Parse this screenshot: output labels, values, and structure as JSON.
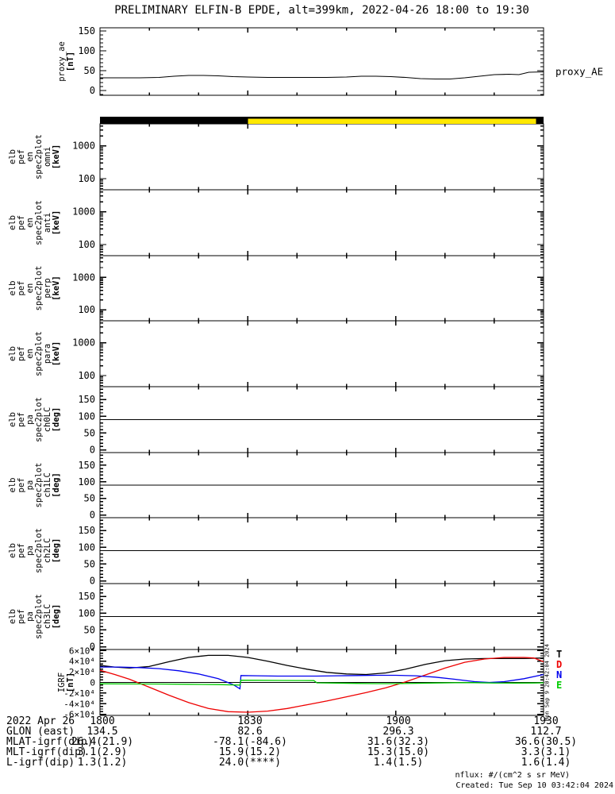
{
  "title": "PRELIMINARY ELFIN-B EPDE, alt=399km, 2022-04-26 18:00 to 19:30",
  "footer": {
    "units_note": "nflux: #/(cm^2 s sr MeV)",
    "created_note": "Created: Tue Sep 10 03:42:04 2024"
  },
  "side_timestamp": "Mon Sep 9 20:42:04 2024",
  "colors": {
    "background": "#ffffff",
    "axis": "#000000",
    "bar_yellow": "#ffe800",
    "bar_black": "#000000",
    "igrf_T": "#000000",
    "igrf_D": "#ee0000",
    "igrf_N": "#0000ee",
    "igrf_E": "#00cc00"
  },
  "time_axis": {
    "tmin": 0,
    "tmax": 90,
    "major_minutes": [
      0,
      30,
      60,
      90
    ],
    "major_labels": [
      "1800",
      "1830",
      "1900",
      "1930"
    ],
    "minor_minutes": [
      10,
      20,
      40,
      50,
      70,
      80
    ]
  },
  "availability_bar": {
    "segments": [
      {
        "from": 0,
        "to": 30,
        "color": "#000000"
      },
      {
        "from": 30,
        "to": 88.5,
        "color": "#ffe800"
      },
      {
        "from": 88.5,
        "to": 90,
        "color": "#000000"
      }
    ]
  },
  "panels": [
    {
      "id": "proxy_ae",
      "label_lines": [
        "proxy_ae",
        "[nT]"
      ],
      "right_label": "proxy_AE",
      "scale": "linear",
      "ylim": [
        -12,
        158
      ],
      "yticks": [
        0,
        50,
        100,
        150
      ],
      "ytick_labels": [
        "0",
        "50",
        "100",
        "150"
      ],
      "minor_step": 10
    },
    {
      "id": "en_omni",
      "label_lines": [
        "elb",
        "pef",
        "en",
        "spec2plot",
        "omni",
        "[keV]"
      ],
      "scale": "log",
      "ylim": [
        46,
        4640
      ],
      "yticks": [
        100,
        1000
      ],
      "ytick_labels": [
        "100",
        "1000"
      ],
      "empty": true
    },
    {
      "id": "en_anti",
      "label_lines": [
        "elb",
        "pef",
        "en",
        "spec2plot",
        "anti",
        "[keV]"
      ],
      "scale": "log",
      "ylim": [
        46,
        4640
      ],
      "yticks": [
        100,
        1000
      ],
      "ytick_labels": [
        "100",
        "1000"
      ],
      "empty": true
    },
    {
      "id": "en_perp",
      "label_lines": [
        "elb",
        "pef",
        "en",
        "spec2plot",
        "perp",
        "[keV]"
      ],
      "scale": "log",
      "ylim": [
        46,
        4640
      ],
      "yticks": [
        100,
        1000
      ],
      "ytick_labels": [
        "100",
        "1000"
      ],
      "empty": true
    },
    {
      "id": "en_para",
      "label_lines": [
        "elb",
        "pef",
        "en",
        "spec2plot",
        "para",
        "[keV]"
      ],
      "scale": "log",
      "ylim": [
        46,
        4640
      ],
      "yticks": [
        100,
        1000
      ],
      "ytick_labels": [
        "100",
        "1000"
      ],
      "empty": true
    },
    {
      "id": "pa_ch0lc",
      "label_lines": [
        "elb",
        "pef",
        "pa",
        "spec2plot",
        "ch0LC",
        "[deg]"
      ],
      "scale": "linear",
      "ylim": [
        -8,
        188
      ],
      "yticks": [
        0,
        50,
        100,
        150
      ],
      "ytick_labels": [
        "0",
        "50",
        "100",
        "150"
      ],
      "minor_step": 10,
      "hline": 90,
      "empty": true
    },
    {
      "id": "pa_ch1lc",
      "label_lines": [
        "elb",
        "pef",
        "pa",
        "spec2plot",
        "ch1LC",
        "[deg]"
      ],
      "scale": "linear",
      "ylim": [
        -8,
        188
      ],
      "yticks": [
        0,
        50,
        100,
        150
      ],
      "ytick_labels": [
        "0",
        "50",
        "100",
        "150"
      ],
      "minor_step": 10,
      "hline": 90,
      "empty": true
    },
    {
      "id": "pa_ch2lc",
      "label_lines": [
        "elb",
        "pef",
        "pa",
        "spec2plot",
        "ch2LC",
        "[deg]"
      ],
      "scale": "linear",
      "ylim": [
        -8,
        188
      ],
      "yticks": [
        0,
        50,
        100,
        150
      ],
      "ytick_labels": [
        "0",
        "50",
        "100",
        "150"
      ],
      "minor_step": 10,
      "hline": 90,
      "empty": true
    },
    {
      "id": "pa_ch3lc",
      "label_lines": [
        "elb",
        "pef",
        "pa",
        "spec2plot",
        "ch3LC",
        "[deg]"
      ],
      "scale": "linear",
      "ylim": [
        -8,
        188
      ],
      "yticks": [
        0,
        50,
        100,
        150
      ],
      "ytick_labels": [
        "0",
        "50",
        "100",
        "150"
      ],
      "minor_step": 10,
      "hline": 90,
      "empty": true
    },
    {
      "id": "igrf",
      "label_lines": [
        "IGRF",
        "[nT]"
      ],
      "scale": "linear",
      "ylim": [
        -62000,
        62000
      ],
      "yticks": [
        60000,
        40000,
        20000,
        0,
        -20000,
        -40000,
        -60000
      ],
      "ytick_labels": [
        "6×10⁴",
        "4×10⁴",
        "2×10⁴",
        "0",
        "-2×10⁴",
        "-4×10⁴",
        "-6×10⁴"
      ],
      "minor_step": 5000,
      "hline": 0,
      "legend": [
        {
          "label": "T",
          "color": "#000000"
        },
        {
          "label": "D",
          "color": "#ee0000"
        },
        {
          "label": "N",
          "color": "#0000ee"
        },
        {
          "label": "E",
          "color": "#00cc00"
        }
      ]
    }
  ],
  "chart_data": [
    {
      "type": "line",
      "panel": "proxy_ae",
      "title": "proxy_AE",
      "ylabel": "proxy_ae [nT]",
      "x_units": "minutes after 18:00 UT",
      "xlim": [
        0,
        90
      ],
      "ylim": [
        -12,
        158
      ],
      "series": [
        {
          "name": "proxy_AE",
          "color": "#000000",
          "points": [
            [
              0,
              32
            ],
            [
              4,
              32
            ],
            [
              8,
              32
            ],
            [
              12,
              33
            ],
            [
              15,
              36
            ],
            [
              18,
              38
            ],
            [
              21,
              38
            ],
            [
              24,
              37
            ],
            [
              27,
              35
            ],
            [
              30,
              34
            ],
            [
              34,
              33
            ],
            [
              38,
              33
            ],
            [
              42,
              33
            ],
            [
              46,
              33
            ],
            [
              50,
              34
            ],
            [
              53,
              36
            ],
            [
              56,
              36
            ],
            [
              59,
              35
            ],
            [
              62,
              33
            ],
            [
              65,
              30
            ],
            [
              68,
              29
            ],
            [
              71,
              29
            ],
            [
              74,
              32
            ],
            [
              77,
              36
            ],
            [
              80,
              40
            ],
            [
              83,
              41
            ],
            [
              85,
              40
            ],
            [
              87,
              46
            ],
            [
              90,
              47
            ]
          ]
        }
      ]
    },
    {
      "type": "line",
      "panel": "igrf",
      "title": "IGRF",
      "ylabel": "IGRF [nT]",
      "x_units": "minutes after 18:00 UT",
      "xlim": [
        0,
        90
      ],
      "ylim": [
        -62000,
        62000
      ],
      "series": [
        {
          "name": "T",
          "color": "#000000",
          "points": [
            [
              0,
              32000
            ],
            [
              3,
              29000
            ],
            [
              6,
              27000
            ],
            [
              10,
              30000
            ],
            [
              14,
              39000
            ],
            [
              18,
              47000
            ],
            [
              22,
              51000
            ],
            [
              26,
              51000
            ],
            [
              30,
              47000
            ],
            [
              34,
              40000
            ],
            [
              38,
              32000
            ],
            [
              42,
              25000
            ],
            [
              46,
              19000
            ],
            [
              50,
              16000
            ],
            [
              54,
              15000
            ],
            [
              58,
              18000
            ],
            [
              62,
              25000
            ],
            [
              66,
              34000
            ],
            [
              70,
              41000
            ],
            [
              74,
              44000
            ],
            [
              78,
              45000
            ],
            [
              82,
              45000
            ],
            [
              86,
              45000
            ],
            [
              90,
              46000
            ]
          ]
        },
        {
          "name": "D",
          "color": "#ee0000",
          "points": [
            [
              0,
              23000
            ],
            [
              3,
              15000
            ],
            [
              6,
              6000
            ],
            [
              10,
              -9000
            ],
            [
              14,
              -24000
            ],
            [
              18,
              -38000
            ],
            [
              22,
              -49000
            ],
            [
              26,
              -55000
            ],
            [
              30,
              -56000
            ],
            [
              34,
              -54000
            ],
            [
              38,
              -49000
            ],
            [
              42,
              -42000
            ],
            [
              46,
              -35000
            ],
            [
              50,
              -27000
            ],
            [
              54,
              -19000
            ],
            [
              58,
              -10000
            ],
            [
              62,
              1000
            ],
            [
              66,
              14000
            ],
            [
              70,
              27000
            ],
            [
              74,
              38000
            ],
            [
              78,
              44000
            ],
            [
              82,
              47000
            ],
            [
              86,
              47000
            ],
            [
              88,
              46000
            ],
            [
              90,
              39000
            ]
          ]
        },
        {
          "name": "N",
          "color": "#0000ee",
          "points": [
            [
              0,
              29000
            ],
            [
              4,
              29000
            ],
            [
              8,
              28000
            ],
            [
              12,
              26000
            ],
            [
              16,
              22000
            ],
            [
              20,
              16000
            ],
            [
              24,
              7000
            ],
            [
              27,
              -4000
            ],
            [
              28.4,
              -12000
            ],
            [
              28.6,
              13000
            ],
            [
              32,
              12500
            ],
            [
              36,
              12000
            ],
            [
              40,
              12000
            ],
            [
              44,
              12000
            ],
            [
              48,
              12500
            ],
            [
              52,
              13000
            ],
            [
              56,
              13500
            ],
            [
              60,
              13500
            ],
            [
              64,
              12500
            ],
            [
              68,
              10000
            ],
            [
              72,
              6000
            ],
            [
              76,
              1500
            ],
            [
              79,
              0
            ],
            [
              82,
              1500
            ],
            [
              86,
              7000
            ],
            [
              90,
              15000
            ]
          ]
        },
        {
          "name": "E",
          "color": "#00cc00",
          "points": [
            [
              0,
              -2500
            ],
            [
              6,
              -2800
            ],
            [
              12,
              -3000
            ],
            [
              18,
              -3500
            ],
            [
              24,
              -4000
            ],
            [
              28.4,
              -5000
            ],
            [
              28.6,
              4200
            ],
            [
              32,
              4000
            ],
            [
              36,
              3800
            ],
            [
              40,
              3600
            ],
            [
              43.4,
              3400
            ],
            [
              44,
              -800
            ],
            [
              48,
              -1200
            ],
            [
              52,
              -1800
            ],
            [
              56,
              -2200
            ],
            [
              60,
              -2200
            ],
            [
              64,
              -1600
            ],
            [
              68,
              -1000
            ],
            [
              72,
              -600
            ],
            [
              76,
              -500
            ],
            [
              80,
              -1000
            ],
            [
              84,
              -1200
            ],
            [
              88,
              -1000
            ],
            [
              90,
              -800
            ]
          ]
        }
      ]
    }
  ],
  "ephemeris": {
    "rows": [
      {
        "label": "2022 Apr 26",
        "values": [
          "1800",
          "1830",
          "1900",
          "1930"
        ]
      },
      {
        "label": "GLON (east)",
        "values": [
          "134.5",
          "82.6",
          "296.3",
          "112.7"
        ]
      },
      {
        "label": "MLAT-igrf(dip)",
        "values": [
          "26.4(21.9)",
          "-78.1(-84.6)",
          "31.6(32.3)",
          "36.6(30.5)"
        ]
      },
      {
        "label": "MLT-igrf(dip)",
        "values": [
          "3.1(2.9)",
          "15.9(15.2)",
          "15.3(15.0)",
          "3.3(3.1)"
        ]
      },
      {
        "label": "L-igrf(dip)",
        "values": [
          "1.3(1.2)",
          "24.0(****)",
          "1.4(1.5)",
          "1.6(1.4)"
        ]
      }
    ]
  }
}
